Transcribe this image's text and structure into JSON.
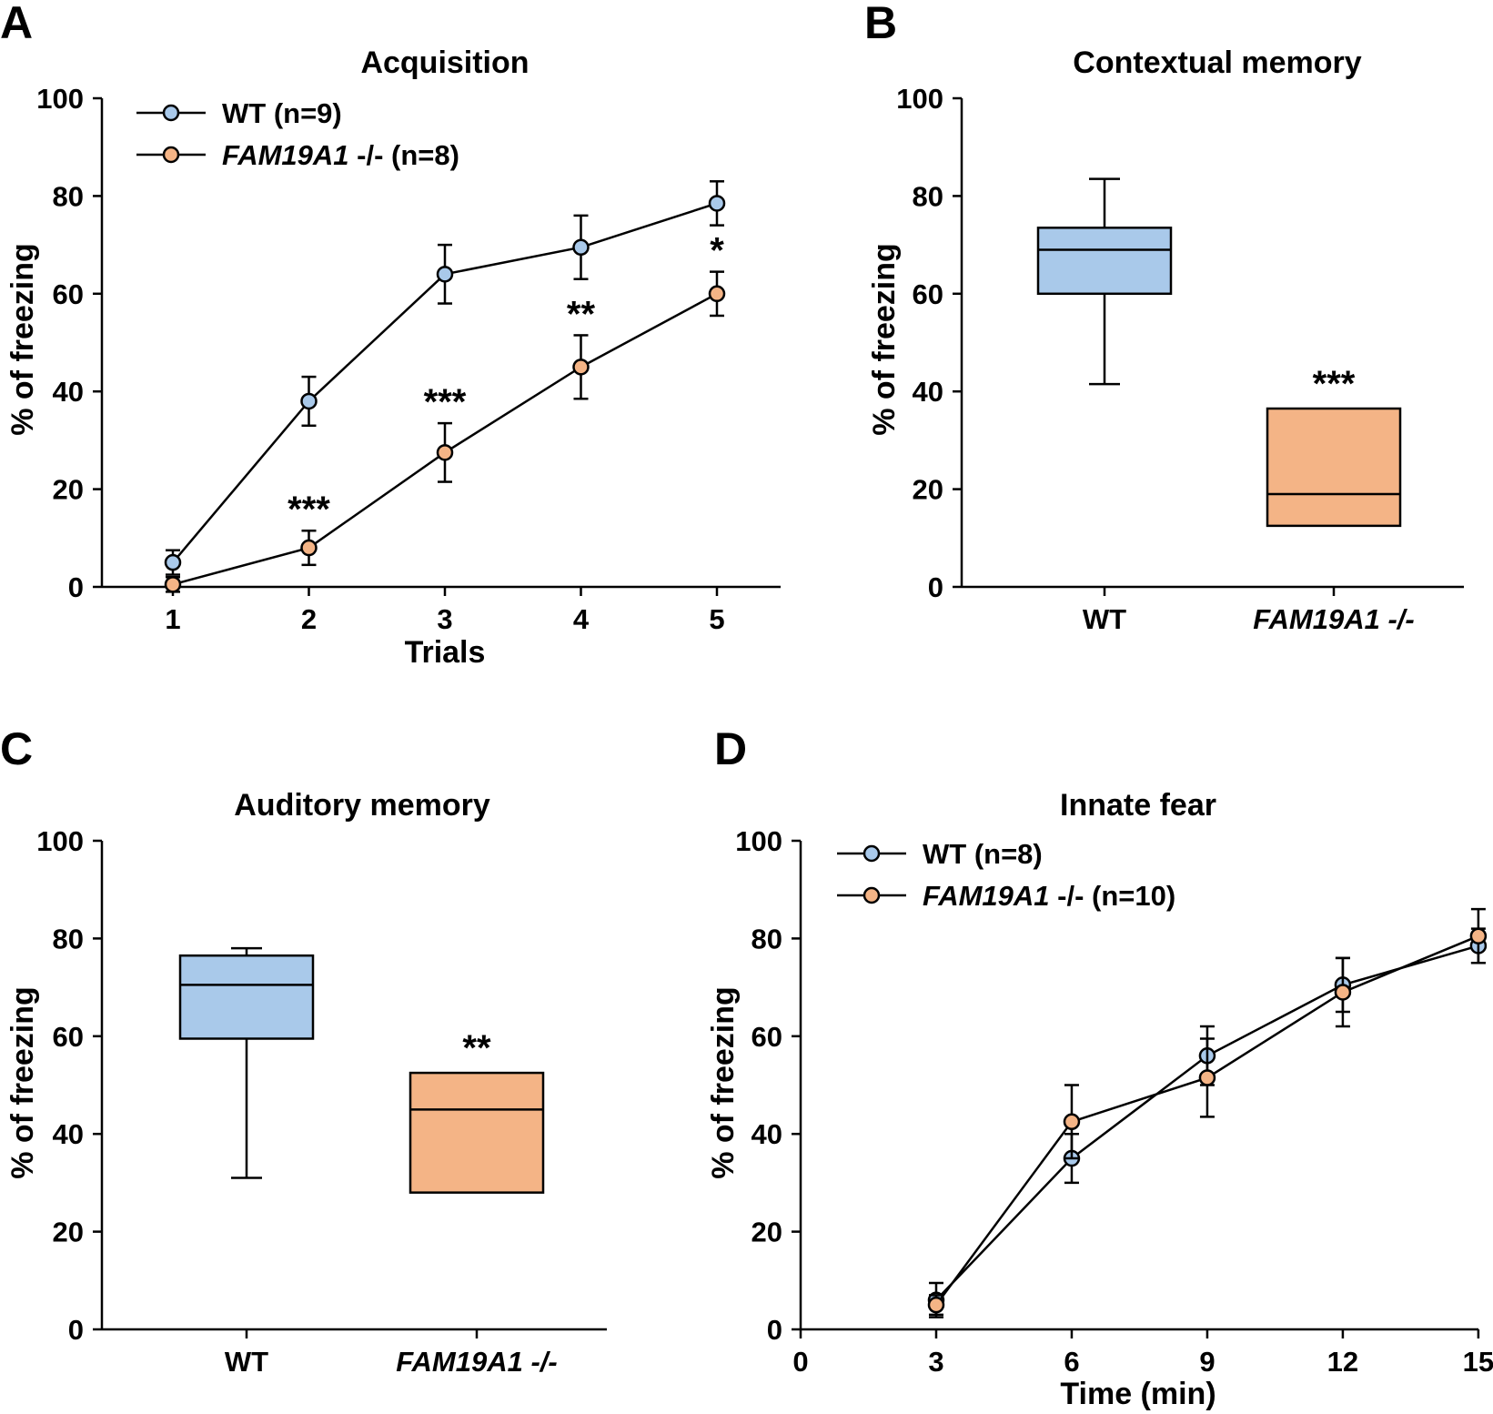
{
  "colors": {
    "wt": "#a9c9ea",
    "ko": "#f4b486",
    "ink": "#000000"
  },
  "chart_data": [
    {
      "panel": "A",
      "type": "line",
      "title": "Acquisition",
      "xlabel": "Trials",
      "ylabel": "% of freezing",
      "ylim": [
        0,
        100
      ],
      "yticks": [
        0,
        20,
        40,
        60,
        80,
        100
      ],
      "x": [
        1,
        2,
        3,
        4,
        5
      ],
      "xticks": [
        "1",
        "2",
        "3",
        "4",
        "5"
      ],
      "legend_position": "top-left",
      "series": [
        {
          "name": "WT",
          "italic_name": "",
          "name_suffix": "(n=9)",
          "color_key": "wt",
          "values": [
            5,
            38,
            64,
            69.5,
            78.5
          ],
          "errors": [
            2.5,
            5,
            6,
            6.5,
            4.5
          ],
          "labels": [
            "",
            "",
            "",
            "",
            ""
          ]
        },
        {
          "name": "",
          "italic_name": "FAM19A1",
          "name_suffix": "-/- (n=8)",
          "color_key": "ko",
          "values": [
            0.5,
            8,
            27.5,
            45,
            60
          ],
          "errors": [
            1.5,
            3.5,
            6,
            6.5,
            4.5
          ],
          "labels": [
            "",
            "***",
            "***",
            "**",
            "*"
          ]
        }
      ]
    },
    {
      "panel": "B",
      "type": "box",
      "title": "Contextual memory",
      "ylabel": "% of freezing",
      "ylim": [
        0,
        100
      ],
      "yticks": [
        0,
        20,
        40,
        60,
        80,
        100
      ],
      "categories": [
        {
          "label": "WT",
          "italic": false,
          "color_key": "wt",
          "whisker_low": 41.5,
          "q1": 60,
          "median": 69,
          "q3": 73.5,
          "whisker_high": 83.5,
          "annotation": ""
        },
        {
          "label": "FAM19A1 -/-",
          "italic": true,
          "color_key": "ko",
          "whisker_low": 12.5,
          "q1": 12.5,
          "median": 19,
          "q3": 36.5,
          "whisker_high": 36.5,
          "annotation": "***"
        }
      ]
    },
    {
      "panel": "C",
      "type": "box",
      "title": "Auditory memory",
      "ylabel": "% of freezing",
      "ylim": [
        0,
        100
      ],
      "yticks": [
        0,
        20,
        40,
        60,
        80,
        100
      ],
      "categories": [
        {
          "label": "WT",
          "italic": false,
          "color_key": "wt",
          "whisker_low": 31,
          "q1": 59.5,
          "median": 70.5,
          "q3": 76.5,
          "whisker_high": 78,
          "annotation": ""
        },
        {
          "label": "FAM19A1 -/-",
          "italic": true,
          "color_key": "ko",
          "whisker_low": 28,
          "q1": 28,
          "median": 45,
          "q3": 52.5,
          "whisker_high": 52.5,
          "annotation": "**"
        }
      ]
    },
    {
      "panel": "D",
      "type": "line",
      "title": "Innate fear",
      "xlabel": "Time (min)",
      "ylabel": "% of freezing",
      "ylim": [
        0,
        100
      ],
      "yticks": [
        0,
        20,
        40,
        60,
        80,
        100
      ],
      "xlim": [
        0,
        15
      ],
      "x": [
        3,
        6,
        9,
        12,
        15
      ],
      "xticks": [
        "0",
        "3",
        "6",
        "9",
        "12",
        "15"
      ],
      "legend_position": "top-left",
      "series": [
        {
          "name": "WT",
          "italic_name": "",
          "name_suffix": "(n=8)",
          "color_key": "wt",
          "values": [
            6,
            35,
            56,
            70.5,
            78.5
          ],
          "errors": [
            3.5,
            5,
            6,
            5.5,
            3.5
          ],
          "labels": [
            "",
            "",
            "",
            "",
            ""
          ]
        },
        {
          "name": "",
          "italic_name": "FAM19A1",
          "name_suffix": "-/- (n=10)",
          "color_key": "ko",
          "values": [
            5,
            42.5,
            51.5,
            69,
            80.5
          ],
          "errors": [
            2,
            7.5,
            8,
            7,
            5.5
          ],
          "labels": [
            "",
            "",
            "",
            "",
            ""
          ]
        }
      ]
    }
  ]
}
